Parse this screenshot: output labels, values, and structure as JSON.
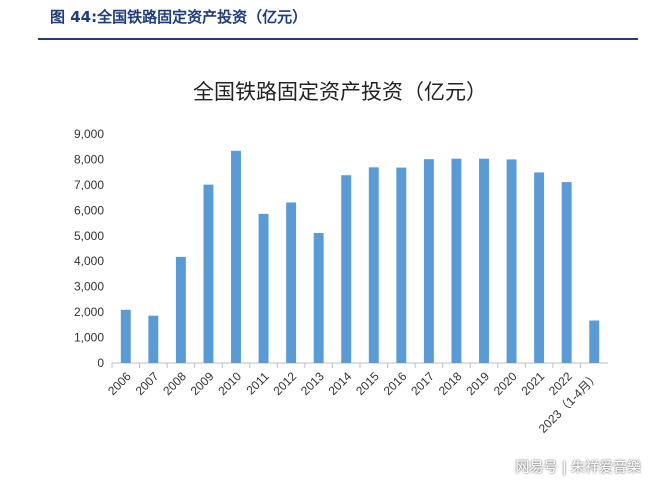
{
  "figure_label": "图 44:全国铁路固定资产投资（亿元）",
  "watermark": "网易号 | 朱祥爱音樂",
  "colors": {
    "bar": "#5b9bd5",
    "header": "#1f3d7a",
    "axis": "#bfbfbf"
  },
  "chart_data": {
    "type": "bar",
    "title": "全国铁路固定资产投资（亿元）",
    "xlabel": "",
    "ylabel": "",
    "categories": [
      "2006",
      "2007",
      "2008",
      "2009",
      "2010",
      "2011",
      "2012",
      "2013",
      "2014",
      "2015",
      "2016",
      "2017",
      "2018",
      "2019",
      "2020",
      "2021",
      "2022",
      "2023（1-4月）"
    ],
    "values": [
      2090,
      1860,
      4170,
      7010,
      8340,
      5860,
      6310,
      5110,
      7380,
      7690,
      7680,
      8010,
      8030,
      8030,
      8000,
      7490,
      7110,
      1670
    ],
    "ylim": [
      0,
      9000
    ],
    "yticks": [
      0,
      1000,
      2000,
      3000,
      4000,
      5000,
      6000,
      7000,
      8000,
      9000
    ],
    "ytick_labels": [
      "0",
      "1,000",
      "2,000",
      "3,000",
      "4,000",
      "5,000",
      "6,000",
      "7,000",
      "8,000",
      "9,000"
    ],
    "grid": false,
    "legend": "none"
  }
}
